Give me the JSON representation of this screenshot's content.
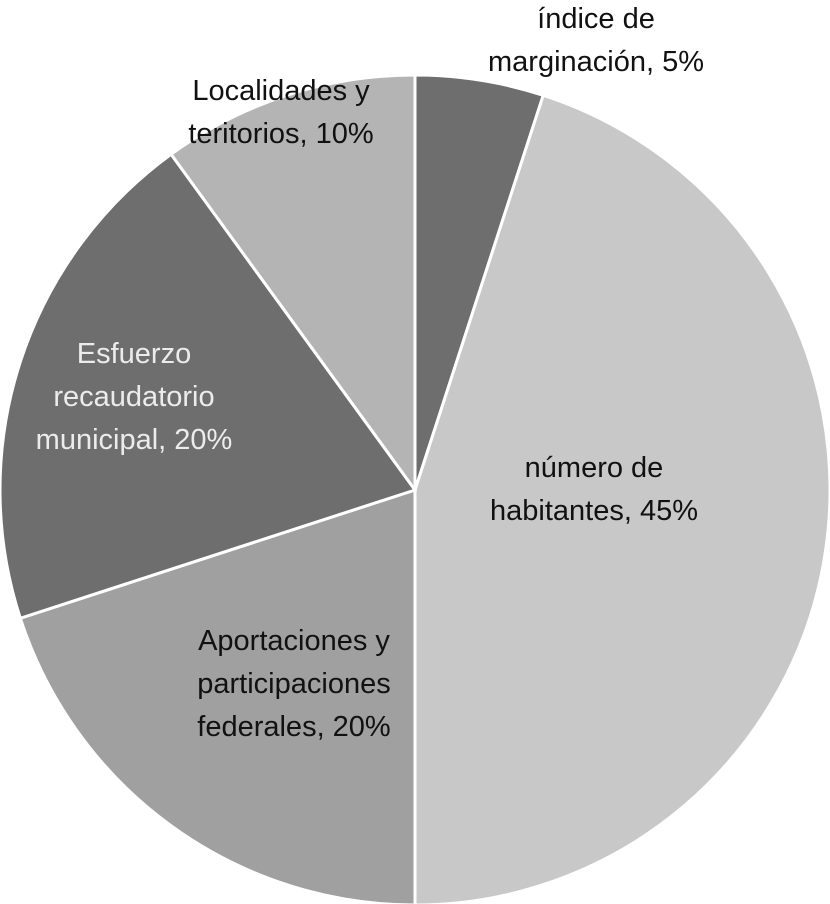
{
  "chart_data": {
    "type": "pie",
    "slices": [
      {
        "lines": [
          "índice de",
          "marginación, 5%"
        ],
        "value": 5,
        "color": "#6e6e6e",
        "text_color": "#111111"
      },
      {
        "lines": [
          "número de",
          "habitantes, 45%"
        ],
        "value": 45,
        "color": "#c8c8c8",
        "text_color": "#111111"
      },
      {
        "lines": [
          "Aportaciones y",
          "participaciones",
          "federales, 20%"
        ],
        "value": 20,
        "color": "#a0a0a0",
        "text_color": "#111111"
      },
      {
        "lines": [
          "Esfuerzo",
          "recaudatorio",
          "municipal, 20%"
        ],
        "value": 20,
        "color": "#6e6e6e",
        "text_color": "#ececec"
      },
      {
        "lines": [
          "Localidades y",
          "teritorios, 10%"
        ],
        "value": 10,
        "color": "#b4b4b4",
        "text_color": "#111111"
      }
    ]
  }
}
